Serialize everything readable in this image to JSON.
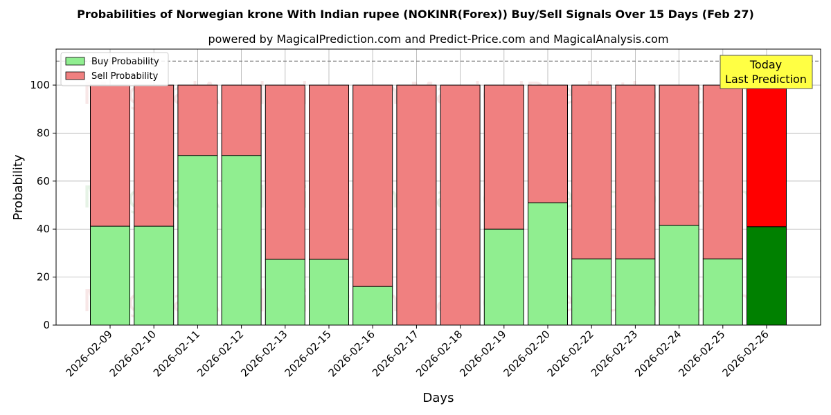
{
  "chart_data": {
    "type": "bar",
    "stacked": true,
    "title": "Probabilities of Norwegian krone With Indian rupee (NOKINR(Forex)) Buy/Sell Signals Over 15 Days (Feb 27)",
    "subtitle": "powered by MagicalPrediction.com and Predict-Price.com and MagicalAnalysis.com",
    "xlabel": "Days",
    "ylabel": "Probability",
    "ylim": [
      0,
      115
    ],
    "yticks": [
      0,
      20,
      40,
      60,
      80,
      100
    ],
    "grid": true,
    "legend_placement": "top-left",
    "reference_line": 110,
    "categories": [
      "2026-02-09",
      "2026-02-10",
      "2026-02-11",
      "2026-02-12",
      "2026-02-13",
      "2026-02-15",
      "2026-02-16",
      "2026-02-17",
      "2026-02-18",
      "2026-02-19",
      "2026-02-20",
      "2026-02-22",
      "2026-02-23",
      "2026-02-24",
      "2026-02-25",
      "2026-02-26"
    ],
    "series": [
      {
        "name": "Buy Probability",
        "values": [
          41.2,
          41.2,
          70.7,
          70.7,
          27.4,
          27.4,
          16.1,
          0,
          0,
          40.0,
          51.0,
          27.6,
          27.6,
          41.6,
          27.6,
          41.0
        ],
        "color": "#90ee90",
        "highlight_color": "#008000"
      },
      {
        "name": "Sell Probability",
        "values": [
          58.8,
          58.8,
          29.3,
          29.3,
          72.6,
          72.6,
          83.9,
          100,
          100,
          60.0,
          49.0,
          72.4,
          72.4,
          58.4,
          72.4,
          59.0
        ],
        "color": "#f08080",
        "highlight_color": "#ff0000"
      }
    ],
    "highlight_index": 15,
    "annotation": {
      "lines": [
        "Today",
        "Last Prediction"
      ],
      "bg_color": "#ffff44"
    },
    "watermarks": [
      "MagicalAnalysis.com",
      "MagicalPrediction.com"
    ]
  }
}
